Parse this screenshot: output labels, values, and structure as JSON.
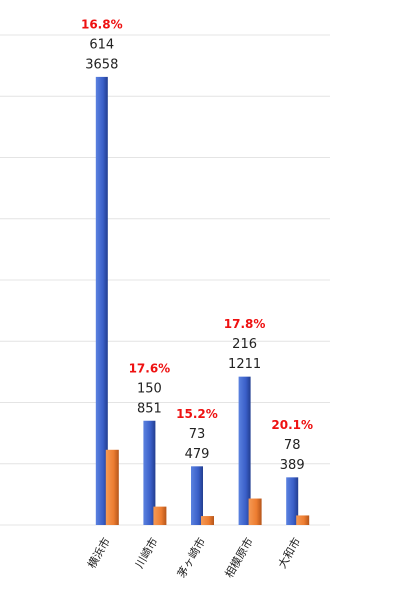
{
  "chart_data": {
    "type": "bar",
    "categories": [
      "横浜市",
      "川崎市",
      "茅ヶ崎市",
      "相模原市",
      "大和市"
    ],
    "series": [
      {
        "color": "#3a5fc8",
        "values": [
          3658,
          851,
          479,
          1211,
          389
        ]
      },
      {
        "color": "#ed7d31",
        "values": [
          614,
          150,
          73,
          216,
          78
        ]
      }
    ],
    "percent_labels": [
      "16.8%",
      "17.6%",
      "15.2%",
      "17.8%",
      "20.1%"
    ],
    "ylim": [
      0,
      4000
    ],
    "yticks": [
      0,
      500,
      1000,
      1500,
      2000,
      2500,
      3000,
      3500,
      4000
    ],
    "grid": true
  }
}
